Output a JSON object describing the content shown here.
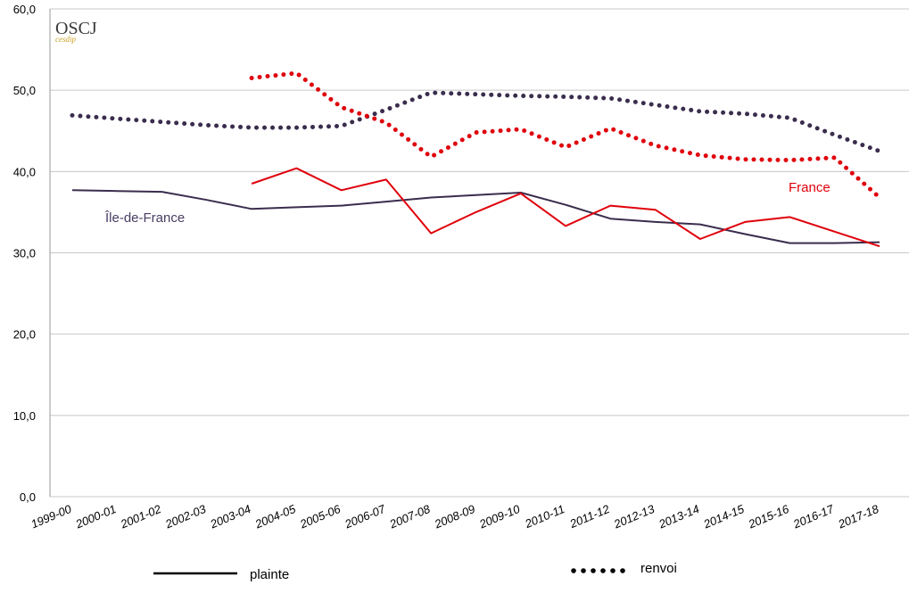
{
  "logo": {
    "main": "OSCJ",
    "sub": "cesdip"
  },
  "chart_data": {
    "type": "line",
    "categories": [
      "1999-00",
      "2000-01",
      "2001-02",
      "2002-03",
      "2003-04",
      "2004-05",
      "2005-06",
      "2006-07",
      "2007-08",
      "2008-09",
      "2009-10",
      "2010-11",
      "2011-12",
      "2012-13",
      "2013-14",
      "2014-15",
      "2015-16",
      "2016-17",
      "2017-18"
    ],
    "ylim": [
      0,
      60
    ],
    "yticks": [
      "0,0",
      "10,0",
      "20,0",
      "30,0",
      "40,0",
      "50,0",
      "60,0"
    ],
    "grid": true,
    "series": [
      {
        "name": "Île-de-France",
        "style": "solid",
        "color": "#3a2d4d",
        "values": [
          37.7,
          37.6,
          37.5,
          36.5,
          35.4,
          35.6,
          35.8,
          36.3,
          36.8,
          37.1,
          37.4,
          35.9,
          34.2,
          33.8,
          33.5,
          32.3,
          31.2,
          31.2,
          31.3
        ]
      },
      {
        "name": "France",
        "style": "solid",
        "color": "#e0000b",
        "values": [
          null,
          null,
          null,
          null,
          38.5,
          40.4,
          37.7,
          39.0,
          32.4,
          35.0,
          37.3,
          33.3,
          35.8,
          35.3,
          31.7,
          33.8,
          34.4,
          32.6,
          30.8
        ]
      },
      {
        "name": "Île-de-France",
        "style": "dotted",
        "color": "#3a2d4d",
        "values": [
          46.9,
          46.5,
          46.1,
          45.7,
          45.4,
          45.4,
          45.6,
          47.6,
          49.7,
          49.5,
          49.3,
          49.2,
          49.0,
          48.2,
          47.4,
          47.1,
          46.6,
          44.5,
          42.5
        ]
      },
      {
        "name": "France",
        "style": "dotted",
        "color": "#e0000b",
        "values": [
          null,
          null,
          null,
          null,
          51.5,
          52.1,
          47.9,
          46.0,
          41.8,
          44.8,
          45.2,
          43.0,
          45.3,
          43.2,
          42.0,
          41.5,
          41.4,
          41.7,
          36.8
        ]
      }
    ],
    "series_labels": [
      {
        "text": "Île-de-France",
        "color": "#4a3d63"
      },
      {
        "text": "France",
        "color": "#e0000b"
      }
    ],
    "legend": {
      "placement": "bottom",
      "items": [
        {
          "label": "plainte",
          "style": "solid"
        },
        {
          "label": "renvoi",
          "style": "dotted"
        }
      ]
    }
  }
}
